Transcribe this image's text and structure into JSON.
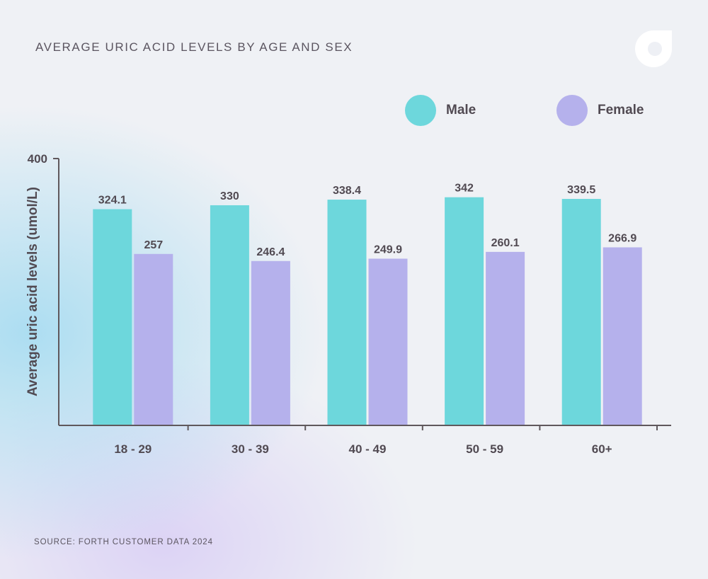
{
  "title": "AVERAGE URIC ACID LEVELS BY AGE AND SEX",
  "source": "SOURCE: FORTH CUSTOMER DATA 2024",
  "logo_icon": "forth-logo-icon",
  "colors": {
    "male": "#6dd7dc",
    "female": "#b5b1ec",
    "axis": "#5f585c",
    "text": "#514a52"
  },
  "legend": [
    {
      "label": "Male",
      "color": "#6dd7dc"
    },
    {
      "label": "Female",
      "color": "#b5b1ec"
    }
  ],
  "chart_data": {
    "type": "bar",
    "title": "AVERAGE URIC ACID LEVELS BY AGE AND SEX",
    "xlabel": "",
    "ylabel": "Average uric acid levels (umol/L)",
    "ylim": [
      0,
      400
    ],
    "yticks": [
      400
    ],
    "grid": false,
    "legend_position": "top-right",
    "categories": [
      "18 - 29",
      "30 - 39",
      "40 - 49",
      "50 - 59",
      "60+"
    ],
    "series": [
      {
        "name": "Male",
        "values": [
          324.1,
          330,
          338.4,
          342,
          339.5
        ],
        "labels": [
          "324.1",
          "330",
          "338.4",
          "342",
          "339.5"
        ]
      },
      {
        "name": "Female",
        "values": [
          257,
          246.4,
          249.9,
          260.1,
          266.9
        ],
        "labels": [
          "257",
          "246.4",
          "249.9",
          "260.1",
          "266.9"
        ]
      }
    ]
  }
}
